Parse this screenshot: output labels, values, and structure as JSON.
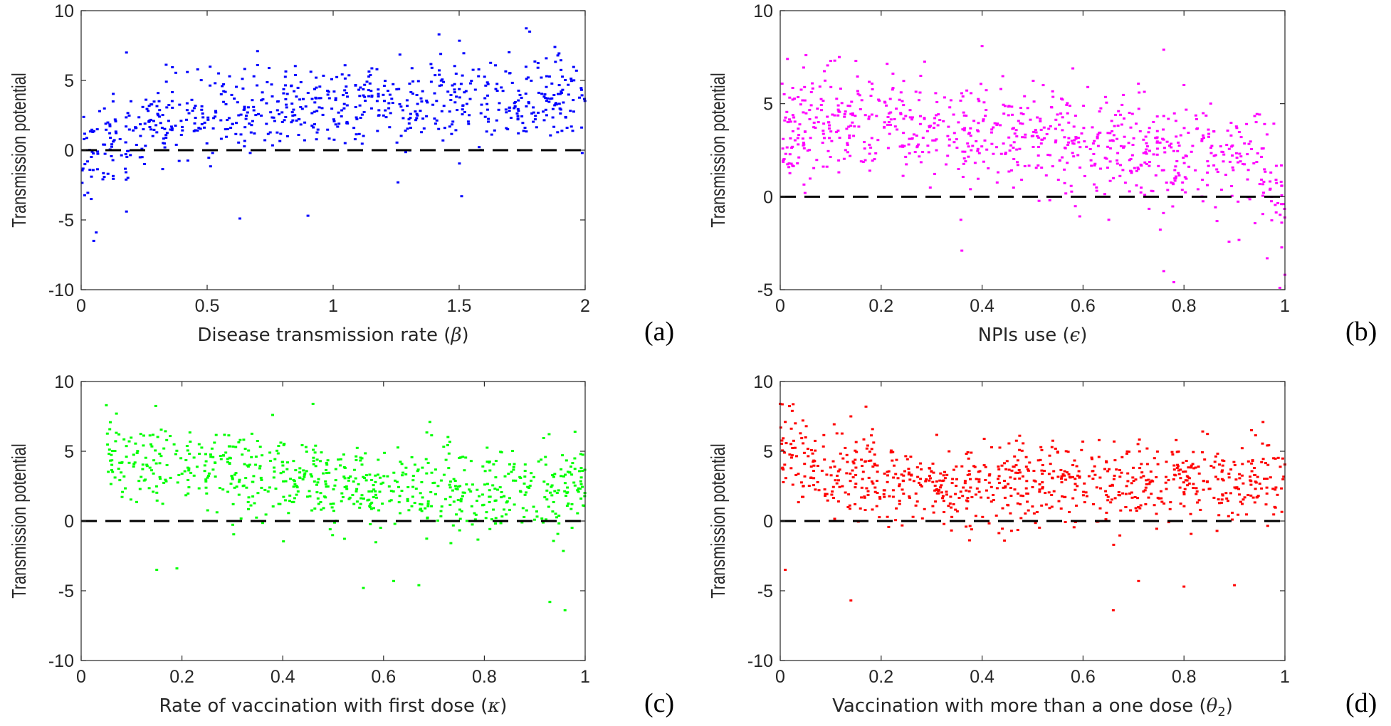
{
  "chart_data": [
    {
      "id": "a",
      "type": "scatter",
      "panel_label": "(a)",
      "xlabel_text": "Disease transmission rate (",
      "xlabel_symbol": "β",
      "xlabel_sub": "",
      "xlabel_close": ")",
      "ylabel": "Transmission potential",
      "xlim": [
        0,
        2
      ],
      "ylim": [
        -10,
        10
      ],
      "xticks": [
        0,
        0.5,
        1,
        1.5,
        2
      ],
      "xtick_labels": [
        "0",
        "0.5",
        "1",
        "1.5",
        "2"
      ],
      "yticks": [
        -10,
        -5,
        0,
        5,
        10
      ],
      "ytick_labels": [
        "-10",
        "-5",
        "0",
        "5",
        "10"
      ],
      "reference_line_y": 0,
      "marker_color": "#0000ff",
      "sample_count": 700,
      "trend": [
        [
          0,
          -1.5
        ],
        [
          0.1,
          0.5
        ],
        [
          0.3,
          2
        ],
        [
          0.6,
          2.8
        ],
        [
          1.0,
          3.2
        ],
        [
          1.5,
          3.5
        ],
        [
          2.0,
          3.6
        ]
      ],
      "spread_sd": 1.5,
      "seed": 11,
      "highlights": [
        {
          "x": 0.05,
          "y": -6.5
        },
        {
          "x": 0.06,
          "y": -5.9
        },
        {
          "x": 0.04,
          "y": -3.5
        },
        {
          "x": 0.18,
          "y": -4.4
        },
        {
          "x": 0.63,
          "y": -4.9
        },
        {
          "x": 0.9,
          "y": -4.7
        },
        {
          "x": 1.51,
          "y": -3.3
        },
        {
          "x": 0.18,
          "y": 7.0
        },
        {
          "x": 0.7,
          "y": 7.1
        },
        {
          "x": 1.42,
          "y": 8.3
        },
        {
          "x": 1.78,
          "y": 8.5
        },
        {
          "x": 1.88,
          "y": 7.4
        }
      ]
    },
    {
      "id": "b",
      "type": "scatter",
      "panel_label": "(b)",
      "xlabel_text": "NPIs use (",
      "xlabel_symbol": "ϵ",
      "xlabel_sub": "",
      "xlabel_close": ")",
      "ylabel": "Transmission potential",
      "xlim": [
        0,
        1
      ],
      "ylim": [
        -5,
        10
      ],
      "xticks": [
        0,
        0.2,
        0.4,
        0.6,
        0.8,
        1
      ],
      "xtick_labels": [
        "0",
        "0.2",
        "0.4",
        "0.6",
        "0.8",
        "1"
      ],
      "yticks": [
        -5,
        0,
        5,
        10
      ],
      "ytick_labels": [
        "-5",
        "0",
        "5",
        "10"
      ],
      "reference_line_y": 0,
      "marker_color": "#ff00ff",
      "sample_count": 800,
      "trend": [
        [
          0,
          3.8
        ],
        [
          0.2,
          3.8
        ],
        [
          0.4,
          3.2
        ],
        [
          0.6,
          2.8
        ],
        [
          0.8,
          2.2
        ],
        [
          0.95,
          1.5
        ],
        [
          1.0,
          -1.0
        ]
      ],
      "spread_sd": 1.4,
      "seed": 23,
      "highlights": [
        {
          "x": 0.4,
          "y": 8.1
        },
        {
          "x": 0.1,
          "y": 7.3
        },
        {
          "x": 0.15,
          "y": 7.3
        },
        {
          "x": 0.76,
          "y": 7.9
        },
        {
          "x": 0.8,
          "y": 6.0
        },
        {
          "x": 0.76,
          "y": -4.0
        },
        {
          "x": 0.78,
          "y": -4.6
        },
        {
          "x": 0.99,
          "y": -4.9
        },
        {
          "x": 1.0,
          "y": -4.2
        },
        {
          "x": 0.36,
          "y": -2.9
        }
      ]
    },
    {
      "id": "c",
      "type": "scatter",
      "panel_label": "(c)",
      "xlabel_text": "Rate of vaccination with first dose (",
      "xlabel_symbol": "κ",
      "xlabel_sub": "",
      "xlabel_close": ")",
      "ylabel": "Transmission potential",
      "xlim": [
        0,
        1
      ],
      "ylim": [
        -10,
        10
      ],
      "xticks": [
        0,
        0.2,
        0.4,
        0.6,
        0.8,
        1
      ],
      "xtick_labels": [
        "0",
        "0.2",
        "0.4",
        "0.6",
        "0.8",
        "1"
      ],
      "yticks": [
        -10,
        -5,
        0,
        5,
        10
      ],
      "ytick_labels": [
        "-10",
        "-5",
        "0",
        "5",
        "10"
      ],
      "reference_line_y": 0,
      "marker_color": "#00ff00",
      "x_start": 0.05,
      "sample_count": 700,
      "trend": [
        [
          0.05,
          4.5
        ],
        [
          0.2,
          3.8
        ],
        [
          0.4,
          3.0
        ],
        [
          0.6,
          2.6
        ],
        [
          0.8,
          2.4
        ],
        [
          1.0,
          2.2
        ]
      ],
      "spread_sd": 1.5,
      "seed": 37,
      "highlights": [
        {
          "x": 0.05,
          "y": 8.3
        },
        {
          "x": 0.07,
          "y": 7.7
        },
        {
          "x": 0.38,
          "y": 7.6
        },
        {
          "x": 0.46,
          "y": 8.4
        },
        {
          "x": 0.98,
          "y": 6.4
        },
        {
          "x": 0.15,
          "y": -3.5
        },
        {
          "x": 0.19,
          "y": -3.4
        },
        {
          "x": 0.56,
          "y": -4.8
        },
        {
          "x": 0.62,
          "y": -4.3
        },
        {
          "x": 0.67,
          "y": -4.6
        },
        {
          "x": 0.93,
          "y": -5.8
        },
        {
          "x": 0.96,
          "y": -6.4
        }
      ]
    },
    {
      "id": "d",
      "type": "scatter",
      "panel_label": "(d)",
      "xlabel_text": "Vaccination with more than a one dose (",
      "xlabel_symbol": "θ",
      "xlabel_sub": "2",
      "xlabel_close": ")",
      "ylabel": "Transmission potential",
      "xlim": [
        0,
        1
      ],
      "ylim": [
        -10,
        10
      ],
      "xticks": [
        0,
        0.2,
        0.4,
        0.6,
        0.8,
        1
      ],
      "xtick_labels": [
        "0",
        "0.2",
        "0.4",
        "0.6",
        "0.8",
        "1"
      ],
      "yticks": [
        -10,
        -5,
        0,
        5,
        10
      ],
      "ytick_labels": [
        "-10",
        "-5",
        "0",
        "5",
        "10"
      ],
      "reference_line_y": 0,
      "marker_color": "#ff0000",
      "sample_count": 800,
      "trend": [
        [
          0,
          4.8
        ],
        [
          0.1,
          3.5
        ],
        [
          0.3,
          2.6
        ],
        [
          0.5,
          2.6
        ],
        [
          0.7,
          2.6
        ],
        [
          0.9,
          2.8
        ],
        [
          1.0,
          3.0
        ]
      ],
      "spread_sd": 1.5,
      "seed": 53,
      "highlights": [
        {
          "x": 0.0,
          "y": 8.4
        },
        {
          "x": 0.01,
          "y": 7.1
        },
        {
          "x": 0.03,
          "y": 7.0
        },
        {
          "x": 0.14,
          "y": 7.5
        },
        {
          "x": 0.17,
          "y": 8.2
        },
        {
          "x": 0.14,
          "y": -5.7
        },
        {
          "x": 0.66,
          "y": -6.4
        },
        {
          "x": 0.71,
          "y": -4.3
        },
        {
          "x": 0.8,
          "y": -4.7
        },
        {
          "x": 0.9,
          "y": -4.6
        },
        {
          "x": 0.01,
          "y": -3.5
        }
      ]
    }
  ]
}
